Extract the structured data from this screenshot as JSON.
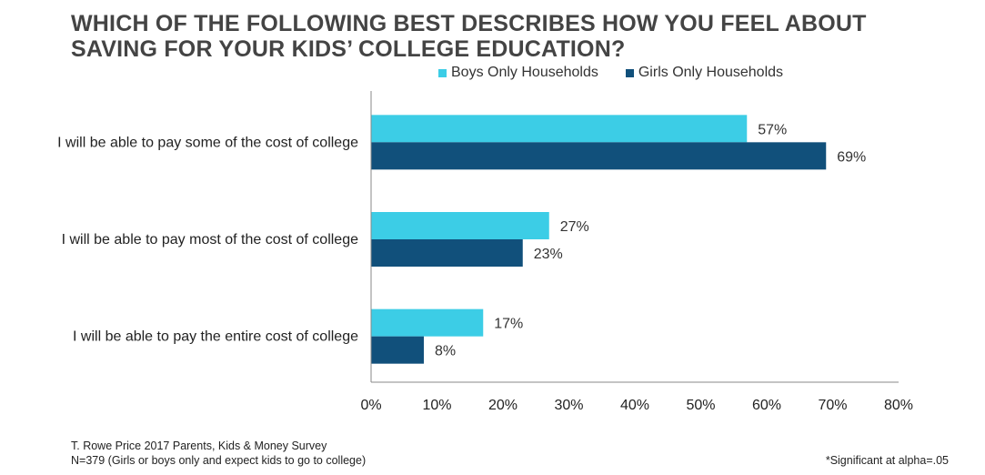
{
  "title": "WHICH OF THE FOLLOWING BEST DESCRIBES HOW YOU FEEL ABOUT SAVING FOR YOUR KIDS’ COLLEGE EDUCATION?",
  "footer": {
    "source_line1": "T. Rowe Price 2017 Parents, Kids & Money Survey",
    "source_line2": "N=379 (Girls or boys only and expect kids to go to college)",
    "note": "*Significant at alpha=.05"
  },
  "chart_data": {
    "type": "bar",
    "orientation": "horizontal",
    "title": "WHICH OF THE FOLLOWING BEST DESCRIBES HOW YOU FEEL ABOUT SAVING FOR YOUR KIDS’ COLLEGE EDUCATION?",
    "categories": [
      "I will be able to pay some of the cost of college",
      "I will be able to pay most of the cost of college",
      "I will be able to pay the entire cost of college"
    ],
    "series": [
      {
        "name": "Boys Only Households",
        "color": "#3ccde6",
        "values": [
          57,
          27,
          17
        ],
        "labels": [
          "57%",
          "27%",
          "17%"
        ]
      },
      {
        "name": "Girls Only Households",
        "color": "#11507b",
        "values": [
          69,
          23,
          8
        ],
        "labels": [
          "69%",
          "23%",
          "8%"
        ]
      }
    ],
    "xlim": [
      0,
      80
    ],
    "ticks": [
      0,
      10,
      20,
      30,
      40,
      50,
      60,
      70,
      80
    ],
    "tick_labels": [
      "0%",
      "10%",
      "20%",
      "30%",
      "40%",
      "50%",
      "60%",
      "70%",
      "80%"
    ],
    "xlabel": "",
    "ylabel": "",
    "grid": false,
    "legend_position": "top"
  }
}
